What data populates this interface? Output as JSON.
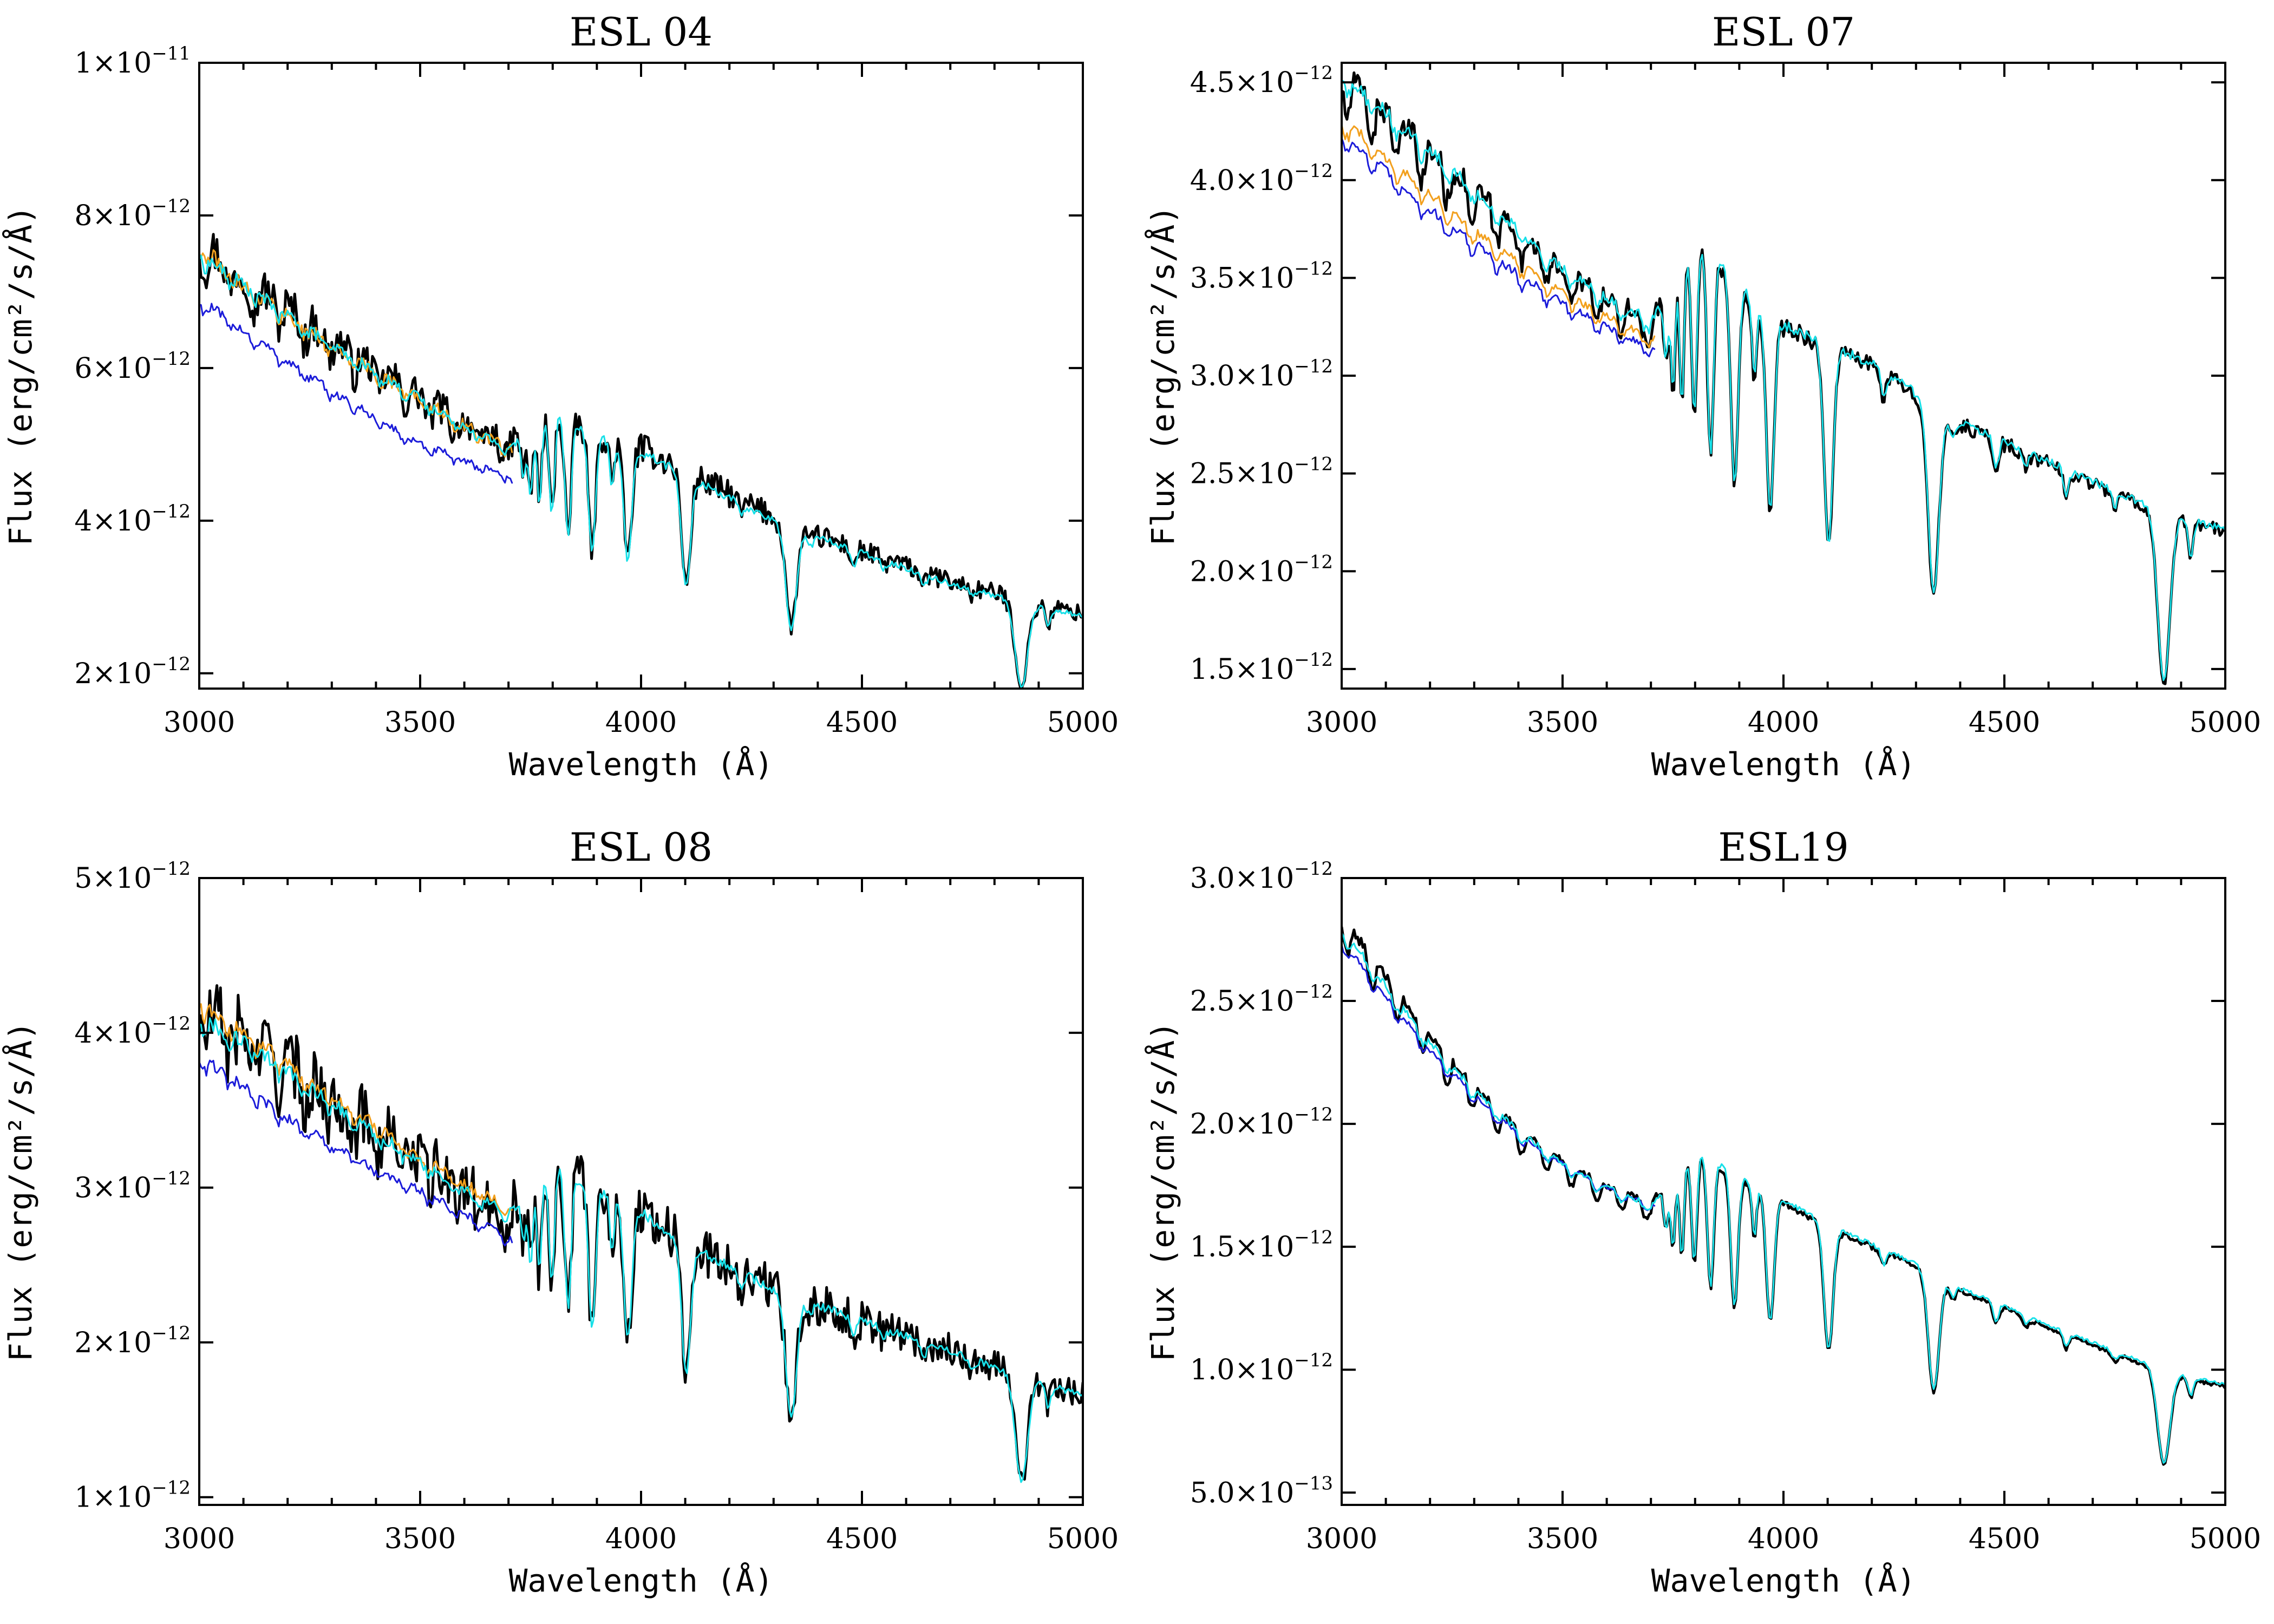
{
  "figure": {
    "x_label": "Wavelength (Å)",
    "y_label": "Flux (erg/cm²/s/Å)"
  },
  "series_colors": {
    "observed": "#000000",
    "model_blue": "#1c1cd9",
    "model_orange": "#f2a01e",
    "model_cyan": "#18e0e8"
  },
  "chart_data": [
    {
      "type": "line",
      "title": "ESL 04",
      "xlabel": "Wavelength (Å)",
      "ylabel": "Flux (erg/cm²/s/Å)",
      "xlim": [
        3000,
        5000
      ],
      "ylim": [
        1.8e-12,
        1e-11
      ],
      "x_ticks": [
        {
          "value": 3000,
          "label": "3000"
        },
        {
          "value": 3500,
          "label": "3500"
        },
        {
          "value": 4000,
          "label": "4000"
        },
        {
          "value": 4500,
          "label": "4500"
        },
        {
          "value": 5000,
          "label": "5000"
        }
      ],
      "y_ticks": [
        {
          "value": 2e-12,
          "mantissa": "2×10",
          "exponent": "−12"
        },
        {
          "value": 4e-12,
          "mantissa": "4×10",
          "exponent": "−12"
        },
        {
          "value": 6e-12,
          "mantissa": "6×10",
          "exponent": "−12"
        },
        {
          "value": 8e-12,
          "mantissa": "8×10",
          "exponent": "−12"
        },
        {
          "value": 1e-11,
          "mantissa": "1×10",
          "exponent": "−11"
        }
      ],
      "series": [
        {
          "name": "observed",
          "color": "#000000",
          "width": 5,
          "noise": 0.04,
          "x": [
            3000,
            3100,
            3200,
            3300,
            3400,
            3500,
            3600,
            3700,
            3800,
            3900,
            4000,
            4100,
            4200,
            4300,
            4400,
            4500,
            4600,
            4700,
            4800,
            4900,
            5000
          ],
          "y": [
            7.7e-12,
            7.2e-12,
            6.8e-12,
            6.4e-12,
            6e-12,
            5.65e-12,
            5.3e-12,
            5e-12,
            5.4e-12,
            5.15e-12,
            4.95e-12,
            4.65e-12,
            4.35e-12,
            4.05e-12,
            3.8e-12,
            3.6e-12,
            3.4e-12,
            3.2e-12,
            3.05e-12,
            2.9e-12,
            2.78e-12
          ]
        },
        {
          "name": "model_blue",
          "color": "#1c1cd9",
          "width": 3,
          "noise": 0.01,
          "x": [
            3000,
            3100,
            3200,
            3300,
            3400,
            3500,
            3600,
            3700,
            3710
          ],
          "y": [
            6.9e-12,
            6.5e-12,
            6.1e-12,
            5.7e-12,
            5.35e-12,
            5e-12,
            4.8e-12,
            4.6e-12,
            4.5e-12
          ]
        },
        {
          "name": "model_orange",
          "color": "#f2a01e",
          "width": 3,
          "noise": 0.015,
          "x": [
            3000,
            3100,
            3200,
            3300,
            3400,
            3500,
            3600,
            3700,
            3710
          ],
          "y": [
            7.6e-12,
            7.1e-12,
            6.7e-12,
            6.3e-12,
            5.95e-12,
            5.6e-12,
            5.25e-12,
            4.95e-12,
            4.9e-12
          ]
        },
        {
          "name": "model_cyan",
          "color": "#18e0e8",
          "width": 3,
          "noise": 0.012,
          "x": [
            3000,
            3100,
            3200,
            3300,
            3400,
            3500,
            3600,
            3700,
            3800,
            3900,
            4000,
            4100,
            4200,
            4300,
            4400,
            4500,
            4600,
            4700,
            4800,
            4900,
            5000
          ],
          "y": [
            7.5e-12,
            7.1e-12,
            6.7e-12,
            6.3e-12,
            5.95e-12,
            5.6e-12,
            5.25e-12,
            4.95e-12,
            5.4e-12,
            5.1e-12,
            4.9e-12,
            4.6e-12,
            4.3e-12,
            4e-12,
            3.78e-12,
            3.58e-12,
            3.38e-12,
            3.18e-12,
            3.02e-12,
            2.88e-12,
            2.75e-12
          ]
        }
      ]
    },
    {
      "type": "line",
      "title": "ESL 07",
      "xlabel": "Wavelength (Å)",
      "ylabel": "Flux (erg/cm²/s/Å)",
      "xlim": [
        3000,
        5000
      ],
      "ylim": [
        1.4e-12,
        4.6e-12
      ],
      "x_ticks": [
        {
          "value": 3000,
          "label": "3000"
        },
        {
          "value": 3500,
          "label": "3500"
        },
        {
          "value": 4000,
          "label": "4000"
        },
        {
          "value": 4500,
          "label": "4500"
        },
        {
          "value": 5000,
          "label": "5000"
        }
      ],
      "y_ticks": [
        {
          "value": 1.5e-12,
          "mantissa": "1.5×10",
          "exponent": "−12"
        },
        {
          "value": 2e-12,
          "mantissa": "2.0×10",
          "exponent": "−12"
        },
        {
          "value": 2.5e-12,
          "mantissa": "2.5×10",
          "exponent": "−12"
        },
        {
          "value": 3e-12,
          "mantissa": "3.0×10",
          "exponent": "−12"
        },
        {
          "value": 3.5e-12,
          "mantissa": "3.5×10",
          "exponent": "−12"
        },
        {
          "value": 4e-12,
          "mantissa": "4.0×10",
          "exponent": "−12"
        },
        {
          "value": 4.5e-12,
          "mantissa": "4.5×10",
          "exponent": "−12"
        }
      ],
      "series": [
        {
          "name": "observed",
          "color": "#000000",
          "width": 5,
          "noise": 0.015,
          "x": [
            3000,
            3100,
            3200,
            3300,
            3400,
            3500,
            3600,
            3700,
            3800,
            3900,
            4000,
            4100,
            4200,
            4300,
            4400,
            4500,
            4600,
            4700,
            4800,
            4900,
            5000
          ],
          "y": [
            4.55e-12,
            4.35e-12,
            4.15e-12,
            3.95e-12,
            3.75e-12,
            3.55e-12,
            3.4e-12,
            3.28e-12,
            3.68e-12,
            3.45e-12,
            3.25e-12,
            3.15e-12,
            3.05e-12,
            2.9e-12,
            2.75e-12,
            2.65e-12,
            2.55e-12,
            2.45e-12,
            2.35e-12,
            2.27e-12,
            2.2e-12
          ]
        },
        {
          "name": "model_blue",
          "color": "#1c1cd9",
          "width": 3,
          "noise": 0.006,
          "x": [
            3000,
            3100,
            3200,
            3300,
            3400,
            3500,
            3600,
            3700,
            3710
          ],
          "y": [
            4.25e-12,
            4.05e-12,
            3.85e-12,
            3.68e-12,
            3.52e-12,
            3.38e-12,
            3.25e-12,
            3.15e-12,
            3.12e-12
          ]
        },
        {
          "name": "model_orange",
          "color": "#f2a01e",
          "width": 3,
          "noise": 0.006,
          "x": [
            3000,
            3100,
            3200,
            3300,
            3400,
            3500,
            3600,
            3700,
            3710
          ],
          "y": [
            4.32e-12,
            4.12e-12,
            3.93e-12,
            3.75e-12,
            3.58e-12,
            3.43e-12,
            3.3e-12,
            3.2e-12,
            3.18e-12
          ]
        },
        {
          "name": "model_cyan",
          "color": "#18e0e8",
          "width": 3,
          "noise": 0.008,
          "x": [
            3000,
            3100,
            3200,
            3300,
            3400,
            3500,
            3600,
            3700,
            3800,
            3900,
            4000,
            4100,
            4200,
            4300,
            4400,
            4500,
            4600,
            4700,
            4800,
            4900,
            5000
          ],
          "y": [
            4.55e-12,
            4.35e-12,
            4.15e-12,
            3.95e-12,
            3.75e-12,
            3.55e-12,
            3.4e-12,
            3.28e-12,
            3.7e-12,
            3.46e-12,
            3.26e-12,
            3.16e-12,
            3.06e-12,
            2.91e-12,
            2.76e-12,
            2.66e-12,
            2.56e-12,
            2.46e-12,
            2.36e-12,
            2.28e-12,
            2.21e-12
          ]
        }
      ]
    },
    {
      "type": "line",
      "title": "ESL 08",
      "xlabel": "Wavelength (Å)",
      "ylabel": "Flux (erg/cm²/s/Å)",
      "xlim": [
        3000,
        5000
      ],
      "ylim": [
        9.5e-13,
        5e-12
      ],
      "x_ticks": [
        {
          "value": 3000,
          "label": "3000"
        },
        {
          "value": 3500,
          "label": "3500"
        },
        {
          "value": 4000,
          "label": "4000"
        },
        {
          "value": 4500,
          "label": "4500"
        },
        {
          "value": 5000,
          "label": "5000"
        }
      ],
      "y_ticks": [
        {
          "value": 1e-12,
          "mantissa": "1×10",
          "exponent": "−12"
        },
        {
          "value": 2e-12,
          "mantissa": "2×10",
          "exponent": "−12"
        },
        {
          "value": 3e-12,
          "mantissa": "3×10",
          "exponent": "−12"
        },
        {
          "value": 4e-12,
          "mantissa": "4×10",
          "exponent": "−12"
        },
        {
          "value": 5e-12,
          "mantissa": "5×10",
          "exponent": "−12"
        }
      ],
      "series": [
        {
          "name": "observed",
          "color": "#000000",
          "width": 5,
          "noise": 0.06,
          "x": [
            3000,
            3100,
            3200,
            3300,
            3400,
            3500,
            3600,
            3700,
            3800,
            3900,
            4000,
            4100,
            4200,
            4300,
            4400,
            4500,
            4600,
            4700,
            4800,
            4900,
            5000
          ],
          "y": [
            4.15e-12,
            4e-12,
            3.8e-12,
            3.6e-12,
            3.4e-12,
            3.2e-12,
            3e-12,
            2.85e-12,
            3.15e-12,
            3e-12,
            2.85e-12,
            2.65e-12,
            2.5e-12,
            2.35e-12,
            2.25e-12,
            2.15e-12,
            2.05e-12,
            1.95e-12,
            1.85e-12,
            1.75e-12,
            1.67e-12
          ]
        },
        {
          "name": "model_blue",
          "color": "#1c1cd9",
          "width": 3,
          "noise": 0.01,
          "x": [
            3000,
            3100,
            3200,
            3300,
            3400,
            3500,
            3600,
            3700,
            3710
          ],
          "y": [
            3.85e-12,
            3.65e-12,
            3.45e-12,
            3.28e-12,
            3.12e-12,
            2.98e-12,
            2.83e-12,
            2.68e-12,
            2.65e-12
          ]
        },
        {
          "name": "model_orange",
          "color": "#f2a01e",
          "width": 3,
          "noise": 0.012,
          "x": [
            3000,
            3100,
            3200,
            3300,
            3400,
            3500,
            3600,
            3700,
            3710
          ],
          "y": [
            4.2e-12,
            4e-12,
            3.8e-12,
            3.6e-12,
            3.4e-12,
            3.2e-12,
            3.02e-12,
            2.88e-12,
            2.85e-12
          ]
        },
        {
          "name": "model_cyan",
          "color": "#18e0e8",
          "width": 3,
          "noise": 0.012,
          "x": [
            3000,
            3100,
            3200,
            3300,
            3400,
            3500,
            3600,
            3700,
            3800,
            3900,
            4000,
            4100,
            4200,
            4300,
            4400,
            4500,
            4600,
            4700,
            4800,
            4900,
            5000
          ],
          "y": [
            4.1e-12,
            3.95e-12,
            3.75e-12,
            3.55e-12,
            3.35e-12,
            3.17e-12,
            2.98e-12,
            2.83e-12,
            3.15e-12,
            2.99e-12,
            2.84e-12,
            2.64e-12,
            2.49e-12,
            2.34e-12,
            2.24e-12,
            2.14e-12,
            2.04e-12,
            1.94e-12,
            1.84e-12,
            1.74e-12,
            1.66e-12
          ]
        }
      ]
    },
    {
      "type": "line",
      "title": "ESL19",
      "xlabel": "Wavelength (Å)",
      "ylabel": "Flux (erg/cm²/s/Å)",
      "xlim": [
        3000,
        5000
      ],
      "ylim": [
        4.5e-13,
        3e-12
      ],
      "x_ticks": [
        {
          "value": 3000,
          "label": "3000"
        },
        {
          "value": 3500,
          "label": "3500"
        },
        {
          "value": 4000,
          "label": "4000"
        },
        {
          "value": 4500,
          "label": "4500"
        },
        {
          "value": 5000,
          "label": "5000"
        }
      ],
      "y_ticks": [
        {
          "value": 5e-13,
          "mantissa": "5.0×10",
          "exponent": "−13"
        },
        {
          "value": 1e-12,
          "mantissa": "1.0×10",
          "exponent": "−12"
        },
        {
          "value": 1.5e-12,
          "mantissa": "1.5×10",
          "exponent": "−12"
        },
        {
          "value": 2e-12,
          "mantissa": "2.0×10",
          "exponent": "−12"
        },
        {
          "value": 2.5e-12,
          "mantissa": "2.5×10",
          "exponent": "−12"
        },
        {
          "value": 3e-12,
          "mantissa": "3.0×10",
          "exponent": "−12"
        }
      ],
      "series": [
        {
          "name": "observed",
          "color": "#000000",
          "width": 5,
          "noise": 0.008,
          "x": [
            3000,
            3100,
            3200,
            3300,
            3400,
            3500,
            3600,
            3700,
            3800,
            3900,
            4000,
            4100,
            4200,
            4300,
            4400,
            4500,
            4600,
            4700,
            4800,
            4900,
            5000
          ],
          "y": [
            2.85e-12,
            2.6e-12,
            2.35e-12,
            2.15e-12,
            1.98e-12,
            1.85e-12,
            1.75e-12,
            1.68e-12,
            1.88e-12,
            1.78e-12,
            1.68e-12,
            1.58e-12,
            1.5e-12,
            1.42e-12,
            1.32e-12,
            1.25e-12,
            1.17e-12,
            1.1e-12,
            1.03e-12,
            9.7e-13,
            9.3e-13
          ]
        },
        {
          "name": "model_blue",
          "color": "#1c1cd9",
          "width": 3,
          "noise": 0.004,
          "x": [
            3000,
            3100,
            3200,
            3300,
            3400,
            3500,
            3600,
            3700,
            3710
          ],
          "y": [
            2.75e-12,
            2.52e-12,
            2.3e-12,
            2.12e-12,
            1.96e-12,
            1.84e-12,
            1.74e-12,
            1.67e-12,
            1.66e-12
          ]
        },
        {
          "name": "model_cyan",
          "color": "#18e0e8",
          "width": 3,
          "noise": 0.006,
          "x": [
            3000,
            3100,
            3200,
            3300,
            3400,
            3500,
            3600,
            3700,
            3800,
            3900,
            4000,
            4100,
            4200,
            4300,
            4400,
            4500,
            4600,
            4700,
            4800,
            4900,
            5000
          ],
          "y": [
            2.8e-12,
            2.56e-12,
            2.33e-12,
            2.14e-12,
            1.97e-12,
            1.84e-12,
            1.74e-12,
            1.67e-12,
            1.9e-12,
            1.79e-12,
            1.69e-12,
            1.59e-12,
            1.51e-12,
            1.43e-12,
            1.33e-12,
            1.26e-12,
            1.18e-12,
            1.11e-12,
            1.04e-12,
            9.8e-13,
            9.4e-13
          ]
        }
      ]
    }
  ]
}
